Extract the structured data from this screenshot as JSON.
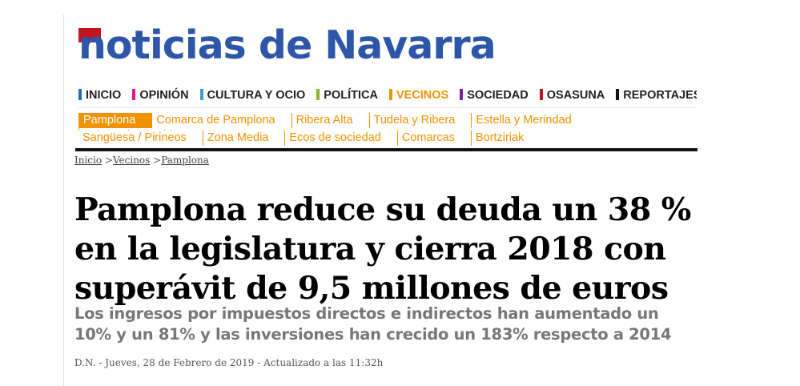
{
  "logo": {
    "text": "noticias de Navarra",
    "brand_color": "#2d56a8",
    "mark_color": "#c0161d"
  },
  "main_nav": [
    {
      "label": "INICIO",
      "color": "#1f6fb7",
      "active": false
    },
    {
      "label": "OPINIÓN",
      "color": "#e6168b",
      "active": false
    },
    {
      "label": "CULTURA Y OCIO",
      "color": "#3aa0d8",
      "active": false
    },
    {
      "label": "POLÍTICA",
      "color": "#8ab32a",
      "active": false
    },
    {
      "label": "VECINOS",
      "color": "#f39200",
      "active": true
    },
    {
      "label": "SOCIEDAD",
      "color": "#7b1fa2",
      "active": false
    },
    {
      "label": "OSASUNA",
      "color": "#c0161d",
      "active": false
    },
    {
      "label": "REPORTAJES",
      "color": "#111111",
      "active": false
    }
  ],
  "sub_nav": {
    "row1": [
      {
        "label": "Pamplona",
        "active": true
      },
      {
        "label": "Comarca de Pamplona",
        "active": false
      },
      {
        "label": "Ribera Alta",
        "active": false
      },
      {
        "label": "Tudela y Ribera",
        "active": false
      },
      {
        "label": "Estella y Merindad",
        "active": false
      },
      {
        "label": "Sakana / Leitzaldea",
        "active": false
      }
    ],
    "row2": [
      {
        "label": "Sangüesa / Pirineos",
        "active": false
      },
      {
        "label": "Zona Media",
        "active": false
      },
      {
        "label": "Ecos de sociedad",
        "active": false
      },
      {
        "label": "Comarcas",
        "active": false
      },
      {
        "label": "Bortziriak",
        "active": false
      }
    ],
    "accent_color": "#f39200"
  },
  "breadcrumb": {
    "items": [
      "Inicio",
      "Vecinos",
      "Pamplona"
    ],
    "separator": " >"
  },
  "article": {
    "headline": "Pamplona reduce su deuda un 38 % en la legislatura y cierra 2018 con superávit de 9,5 millones de euros",
    "subheadline": "Los ingresos por impuestos directos e indirectos han aumentado un 10% y un 81% y las inversiones han crecido un 183% respecto a 2014",
    "byline": "D.N. - Jueves, 28 de Febrero de 2019 - Actualizado a las 11:32h"
  }
}
